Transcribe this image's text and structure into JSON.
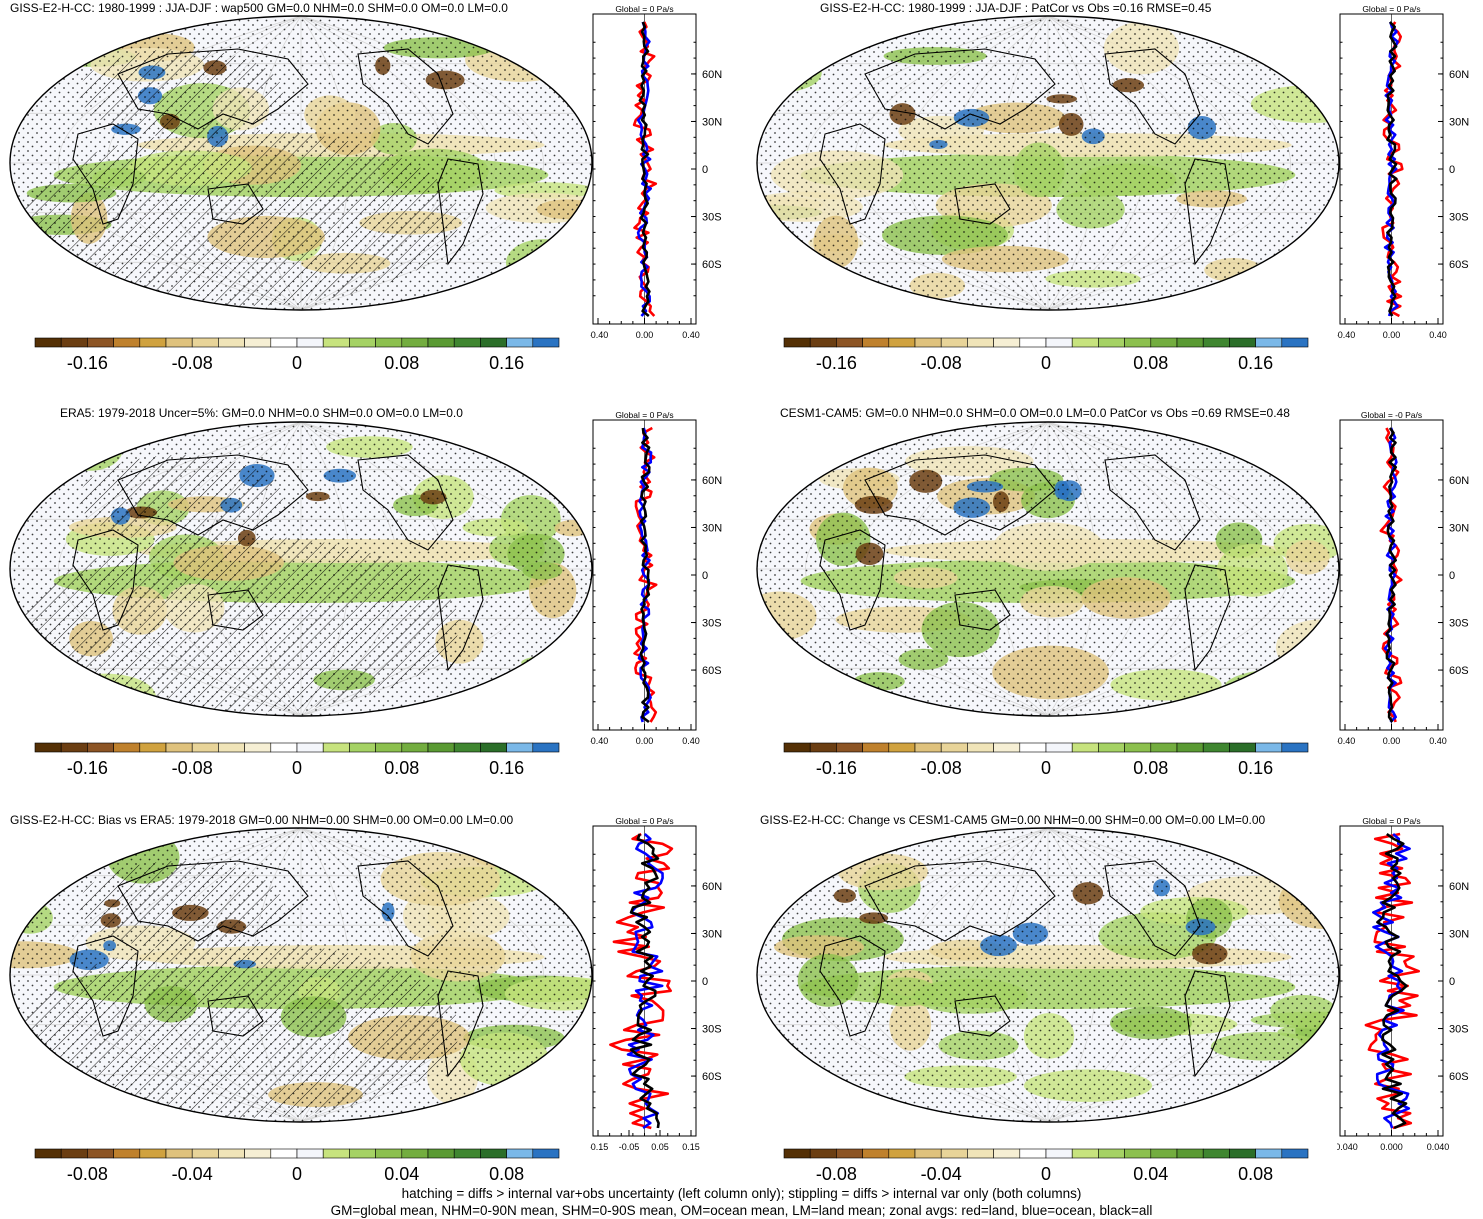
{
  "panels": [
    {
      "title": "GISS-E2-H-CC: 1980-1999 : JJA-DJF : wap500 GM=0.0 NHM=0.0 SHM=0.0 OM=0.0 LM=0.0",
      "hatching": true,
      "zonal_header": "Global = 0 Pa/s",
      "zonal_ticks": [
        "-0.40",
        "0.00",
        "0.40"
      ],
      "colorbar_labels": [
        "-0.16",
        "-0.08",
        "0",
        "0.08",
        "0.16"
      ]
    },
    {
      "title": "GISS-E2-H-CC: 1980-1999 : JJA-DJF : PatCor vs Obs =0.16 RMSE=0.45",
      "hatching": false,
      "zonal_header": "Global = 0 Pa/s",
      "zonal_ticks": [
        "-0.40",
        "0.00",
        "0.40"
      ],
      "colorbar_labels": [
        "-0.16",
        "-0.08",
        "0",
        "0.08",
        "0.16"
      ]
    },
    {
      "title": "ERA5: 1979-2018 Uncer=5%: GM=0.0 NHM=0.0 SHM=0.0 OM=0.0 LM=0.0",
      "hatching": true,
      "zonal_header": "Global = 0 Pa/s",
      "zonal_ticks": [
        "-0.40",
        "0.00",
        "0.40"
      ],
      "colorbar_labels": [
        "-0.16",
        "-0.08",
        "0",
        "0.08",
        "0.16"
      ]
    },
    {
      "title": "CESM1-CAM5: GM=0.0 NHM=0.0 SHM=0.0 OM=0.0 LM=0.0 PatCor vs Obs =0.69 RMSE=0.48",
      "hatching": false,
      "zonal_header": "Global = -0 Pa/s",
      "zonal_ticks": [
        "-0.40",
        "0.00",
        "0.40"
      ],
      "colorbar_labels": [
        "-0.16",
        "-0.08",
        "0",
        "0.08",
        "0.16"
      ]
    },
    {
      "title": "GISS-E2-H-CC: Bias vs ERA5: 1979-2018 GM=0.00 NHM=0.00 SHM=0.00 OM=0.00 LM=0.00",
      "hatching": true,
      "zonal_header": "Global = 0 Pa/s",
      "zonal_ticks": [
        "-0.15",
        "-0.05",
        "0.05",
        "0.15"
      ],
      "colorbar_labels": [
        "-0.08",
        "-0.04",
        "0",
        "0.04",
        "0.08"
      ]
    },
    {
      "title": "GISS-E2-H-CC: Change vs CESM1-CAM5 GM=0.00 NHM=0.00 SHM=0.00 OM=0.00 LM=0.00",
      "hatching": false,
      "zonal_header": "Global = 0 Pa/s",
      "zonal_ticks": [
        "-0.040",
        "0.000",
        "0.040"
      ],
      "colorbar_labels": [
        "-0.08",
        "-0.04",
        "0",
        "0.04",
        "0.08"
      ]
    }
  ],
  "lat_labels": [
    "60N",
    "30N",
    "0",
    "30S",
    "60S"
  ],
  "colorbar_colors": [
    "#543005",
    "#6b3e12",
    "#8c5424",
    "#bf812d",
    "#d0a23f",
    "#dfc27d",
    "#e8d499",
    "#f0e4b8",
    "#f6efd4",
    "#ffffff",
    "#f4f6fb",
    "#c7e37e",
    "#a5d264",
    "#8cc04e",
    "#73ad3f",
    "#5a9a33",
    "#3f8630",
    "#2b6e29",
    "#7ab8e8",
    "#2a73c2"
  ],
  "zonal_colors": {
    "land": "#ff0000",
    "ocean": "#0000ff",
    "all": "#000000"
  },
  "footnote": {
    "line1": "hatching = diffs > internal var+obs uncertainty (left column only); stippling = diffs > internal var only (both columns)",
    "line2": "GM=global mean, NHM=0-90N mean, SHM=0-90S mean, OM=ocean mean, LM=land mean; zonal avgs: red=land, blue=ocean, black=all"
  }
}
